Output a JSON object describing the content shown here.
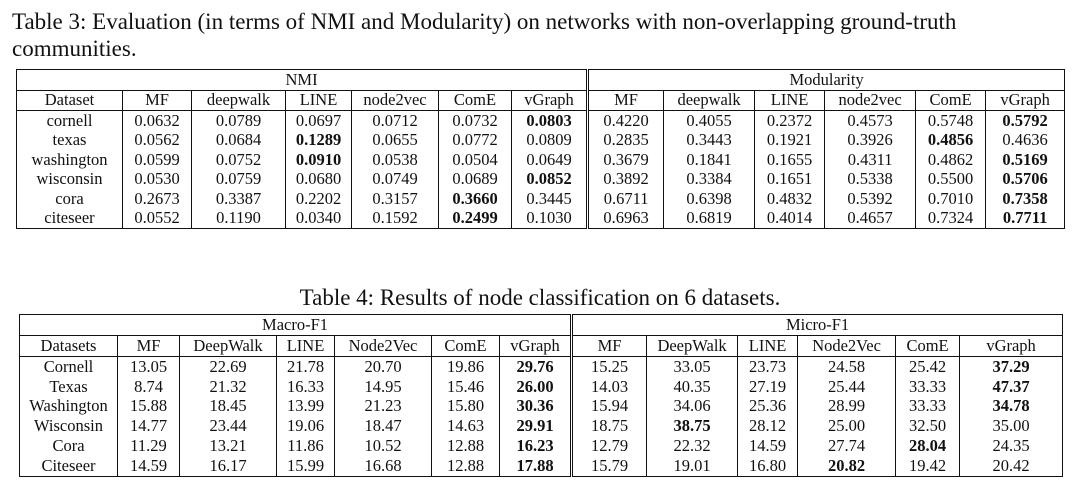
{
  "table3": {
    "caption": "Table 3: Evaluation (in terms of NMI and Modularity) on networks with non-overlapping ground-truth communities.",
    "groups": [
      "NMI",
      "Modularity"
    ],
    "columns": [
      "Dataset",
      "MF",
      "deepwalk",
      "LINE",
      "node2vec",
      "ComE",
      "vGraph",
      "MF",
      "deepwalk",
      "LINE",
      "node2vec",
      "ComE",
      "vGraph"
    ],
    "rows": [
      [
        "cornell",
        "0.0632",
        "0.0789",
        "0.0697",
        "0.0712",
        "0.0732",
        "0.0803",
        "0.4220",
        "0.4055",
        "0.2372",
        "0.4573",
        "0.5748",
        "0.5792"
      ],
      [
        "texas",
        "0.0562",
        "0.0684",
        "0.1289",
        "0.0655",
        "0.0772",
        "0.0809",
        "0.2835",
        "0.3443",
        "0.1921",
        "0.3926",
        "0.4856",
        "0.4636"
      ],
      [
        "washington",
        "0.0599",
        "0.0752",
        "0.0910",
        "0.0538",
        "0.0504",
        "0.0649",
        "0.3679",
        "0.1841",
        "0.1655",
        "0.4311",
        "0.4862",
        "0.5169"
      ],
      [
        "wisconsin",
        "0.0530",
        "0.0759",
        "0.0680",
        "0.0749",
        "0.0689",
        "0.0852",
        "0.3892",
        "0.3384",
        "0.1651",
        "0.5338",
        "0.5500",
        "0.5706"
      ],
      [
        "cora",
        "0.2673",
        "0.3387",
        "0.2202",
        "0.3157",
        "0.3660",
        "0.3445",
        "0.6711",
        "0.6398",
        "0.4832",
        "0.5392",
        "0.7010",
        "0.7358"
      ],
      [
        "citeseer",
        "0.0552",
        "0.1190",
        "0.0340",
        "0.1592",
        "0.2499",
        "0.1030",
        "0.6963",
        "0.6819",
        "0.4014",
        "0.4657",
        "0.7324",
        "0.7711"
      ]
    ],
    "bold": [
      [
        0,
        6
      ],
      [
        0,
        12
      ],
      [
        1,
        3
      ],
      [
        1,
        11
      ],
      [
        2,
        3
      ],
      [
        2,
        12
      ],
      [
        3,
        6
      ],
      [
        3,
        12
      ],
      [
        4,
        5
      ],
      [
        4,
        12
      ],
      [
        5,
        5
      ],
      [
        5,
        12
      ]
    ]
  },
  "table4": {
    "caption": "Table 4: Results of node classification on 6 datasets.",
    "groups": [
      "Macro-F1",
      "Micro-F1"
    ],
    "columns": [
      "Datasets",
      "MF",
      "DeepWalk",
      "LINE",
      "Node2Vec",
      "ComE",
      "vGraph",
      "MF",
      "DeepWalk",
      "LINE",
      "Node2Vec",
      "ComE",
      "vGraph"
    ],
    "rows": [
      [
        "Cornell",
        "13.05",
        "22.69",
        "21.78",
        "20.70",
        "19.86",
        "29.76",
        "15.25",
        "33.05",
        "23.73",
        "24.58",
        "25.42",
        "37.29"
      ],
      [
        "Texas",
        "8.74",
        "21.32",
        "16.33",
        "14.95",
        "15.46",
        "26.00",
        "14.03",
        "40.35",
        "27.19",
        "25.44",
        "33.33",
        "47.37"
      ],
      [
        "Washington",
        "15.88",
        "18.45",
        "13.99",
        "21.23",
        "15.80",
        "30.36",
        "15.94",
        "34.06",
        "25.36",
        "28.99",
        "33.33",
        "34.78"
      ],
      [
        "Wisconsin",
        "14.77",
        "23.44",
        "19.06",
        "18.47",
        "14.63",
        "29.91",
        "18.75",
        "38.75",
        "28.12",
        "25.00",
        "32.50",
        "35.00"
      ],
      [
        "Cora",
        "11.29",
        "13.21",
        "11.86",
        "10.52",
        "12.88",
        "16.23",
        "12.79",
        "22.32",
        "14.59",
        "27.74",
        "28.04",
        "24.35"
      ],
      [
        "Citeseer",
        "14.59",
        "16.17",
        "15.99",
        "16.68",
        "12.88",
        "17.88",
        "15.79",
        "19.01",
        "16.80",
        "20.82",
        "19.42",
        "20.42"
      ]
    ],
    "bold": [
      [
        0,
        6
      ],
      [
        0,
        12
      ],
      [
        1,
        6
      ],
      [
        1,
        12
      ],
      [
        2,
        6
      ],
      [
        2,
        12
      ],
      [
        3,
        6
      ],
      [
        3,
        8
      ],
      [
        4,
        6
      ],
      [
        4,
        11
      ],
      [
        5,
        6
      ],
      [
        5,
        10
      ]
    ]
  }
}
